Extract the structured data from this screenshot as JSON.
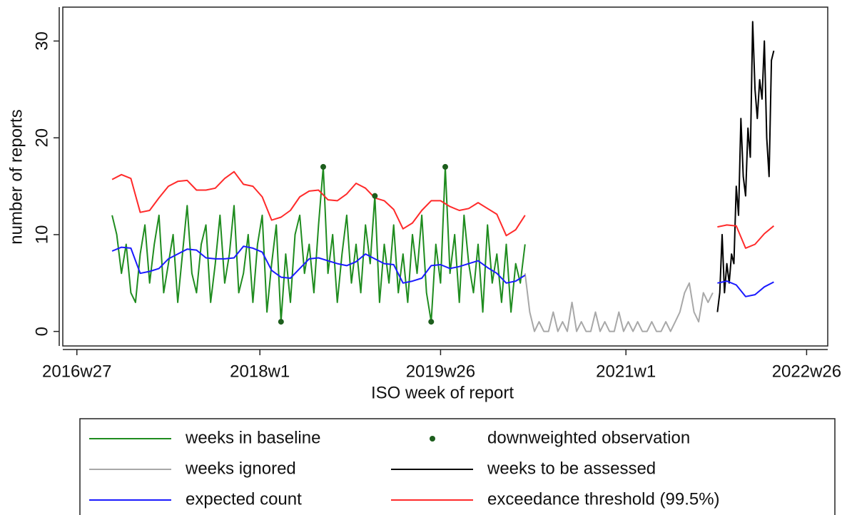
{
  "chart_data": {
    "type": "line",
    "xlabel": "ISO week of report",
    "ylabel": "number of reports",
    "xlim": [
      2932,
      3258
    ],
    "ylim": [
      -1.5,
      33.5
    ],
    "xticks": [
      {
        "value": 2938,
        "label": "2016w27"
      },
      {
        "value": 3016,
        "label": "2018w1"
      },
      {
        "value": 3093,
        "label": "2019w26"
      },
      {
        "value": 3172,
        "label": "2021w1"
      },
      {
        "value": 3249,
        "label": "2022w26"
      }
    ],
    "yticks": [
      0,
      10,
      20,
      30
    ],
    "legend": "bottom",
    "series": [
      {
        "name": "weeks in baseline",
        "color": "#1f8c1f",
        "style": "line",
        "x": [
          2953,
          2955,
          2957,
          2959,
          2961,
          2963,
          2965,
          2967,
          2969,
          2971,
          2973,
          2975,
          2977,
          2979,
          2981,
          2983,
          2985,
          2987,
          2989,
          2991,
          2993,
          2995,
          2997,
          2999,
          3001,
          3003,
          3005,
          3007,
          3009,
          3011,
          3013,
          3015,
          3017,
          3019,
          3021,
          3023,
          3025,
          3027,
          3029,
          3031,
          3033,
          3035,
          3037,
          3039,
          3041,
          3043,
          3045,
          3047,
          3049,
          3051,
          3053,
          3055,
          3057,
          3059,
          3061,
          3063,
          3065,
          3067,
          3069,
          3071,
          3073,
          3075,
          3077,
          3079,
          3081,
          3083,
          3085,
          3087,
          3089,
          3091,
          3093,
          3095,
          3097,
          3099,
          3101,
          3103,
          3105,
          3107,
          3109,
          3111,
          3113,
          3115,
          3117,
          3119,
          3121,
          3123,
          3125,
          3127,
          3129
        ],
        "values": [
          12,
          10,
          6,
          9,
          4,
          3,
          8,
          11,
          5,
          9,
          12,
          4,
          7,
          10,
          3,
          8,
          13,
          6,
          4,
          9,
          11,
          3,
          7,
          12,
          5,
          8,
          13,
          4,
          6,
          10,
          3,
          9,
          12,
          2,
          7,
          11,
          1,
          8,
          3,
          10,
          12,
          6,
          9,
          4,
          11,
          17,
          6,
          10,
          3,
          8,
          12,
          5,
          9,
          4,
          11,
          7,
          14,
          3,
          9,
          5,
          11,
          4,
          8,
          3,
          10,
          6,
          12,
          4,
          1,
          9,
          5,
          17,
          6,
          10,
          3,
          12,
          7,
          4,
          9,
          2,
          11,
          5,
          8,
          3,
          9,
          2,
          7,
          5,
          9
        ]
      },
      {
        "name": "downweighted observation",
        "color": "#1d5e1d",
        "style": "marker",
        "x": [
          3025,
          3043,
          3065,
          3089,
          3095
        ],
        "values": [
          1,
          17,
          14,
          1,
          17
        ]
      },
      {
        "name": "weeks ignored",
        "color": "#a8a8a8",
        "style": "line",
        "x": [
          3129,
          3131,
          3133,
          3135,
          3137,
          3139,
          3141,
          3143,
          3145,
          3147,
          3149,
          3151,
          3153,
          3155,
          3157,
          3159,
          3161,
          3163,
          3165,
          3167,
          3169,
          3171,
          3173,
          3175,
          3177,
          3179,
          3181,
          3183,
          3185,
          3187,
          3189,
          3191,
          3193,
          3195,
          3197,
          3199,
          3201,
          3203,
          3205,
          3207,
          3209
        ],
        "values": [
          6,
          2,
          0,
          1,
          0,
          0,
          2,
          0,
          1,
          0,
          3,
          0,
          1,
          0,
          0,
          2,
          0,
          1,
          0,
          0,
          2,
          0,
          1,
          0,
          1,
          0,
          0,
          1,
          0,
          0,
          1,
          0,
          1,
          2,
          4,
          5,
          2,
          1,
          4,
          3,
          4
        ]
      },
      {
        "name": "weeks to be assessed",
        "color": "#000000",
        "style": "line",
        "x": [
          3211,
          3212,
          3213,
          3214,
          3215,
          3216,
          3217,
          3218,
          3219,
          3220,
          3221,
          3222,
          3223,
          3224,
          3225,
          3226,
          3227,
          3228,
          3229,
          3230,
          3231,
          3232,
          3233,
          3234,
          3235
        ],
        "values": [
          2,
          4,
          10,
          4,
          7,
          5,
          8,
          7,
          15,
          12,
          22,
          16,
          14,
          21,
          18,
          32,
          25,
          22,
          26,
          24,
          30,
          20,
          16,
          28,
          29
        ]
      },
      {
        "name": "expected count",
        "color": "#1a1aff",
        "style": "line",
        "x": [
          2953,
          2957,
          2961,
          2965,
          2969,
          2973,
          2977,
          2981,
          2985,
          2989,
          2993,
          2997,
          3001,
          3005,
          3009,
          3013,
          3017,
          3021,
          3025,
          3029,
          3033,
          3037,
          3041,
          3045,
          3049,
          3053,
          3057,
          3061,
          3065,
          3069,
          3073,
          3077,
          3081,
          3085,
          3089,
          3093,
          3097,
          3101,
          3105,
          3109,
          3113,
          3117,
          3121,
          3125,
          3129,
          null,
          3211,
          3215,
          3219,
          3223,
          3227,
          3231,
          3235
        ],
        "values": [
          8.3,
          8.7,
          8.6,
          6.0,
          6.2,
          6.5,
          7.5,
          8.0,
          8.5,
          8.4,
          7.6,
          7.5,
          7.5,
          7.6,
          8.8,
          8.6,
          8.2,
          6.3,
          5.6,
          5.5,
          6.5,
          7.5,
          7.6,
          7.3,
          7.0,
          6.8,
          7.2,
          8.0,
          7.5,
          7.0,
          6.9,
          5.0,
          5.2,
          5.5,
          6.8,
          6.9,
          6.5,
          6.7,
          7.0,
          7.3,
          6.6,
          6.0,
          5.0,
          5.2,
          5.8,
          null,
          5.0,
          5.2,
          4.8,
          3.6,
          3.8,
          4.6,
          5.1
        ]
      },
      {
        "name": "exceedance threshold (99.5%)",
        "color": "#ff2a2a",
        "style": "line",
        "x": [
          2953,
          2957,
          2961,
          2965,
          2969,
          2973,
          2977,
          2981,
          2985,
          2989,
          2993,
          2997,
          3001,
          3005,
          3009,
          3013,
          3017,
          3021,
          3025,
          3029,
          3033,
          3037,
          3041,
          3045,
          3049,
          3053,
          3057,
          3061,
          3065,
          3069,
          3073,
          3077,
          3081,
          3085,
          3089,
          3093,
          3097,
          3101,
          3105,
          3109,
          3113,
          3117,
          3121,
          3125,
          3129,
          null,
          3211,
          3215,
          3219,
          3223,
          3227,
          3231,
          3235
        ],
        "values": [
          15.7,
          16.2,
          15.8,
          12.3,
          12.5,
          13.8,
          15.0,
          15.5,
          15.6,
          14.6,
          14.6,
          14.8,
          15.8,
          16.5,
          15.2,
          15.0,
          13.9,
          11.5,
          11.8,
          12.5,
          13.9,
          14.5,
          14.6,
          13.6,
          13.5,
          14.2,
          15.3,
          14.8,
          13.8,
          13.5,
          12.6,
          10.6,
          11.2,
          12.5,
          13.5,
          13.5,
          12.9,
          12.5,
          12.7,
          13.3,
          12.7,
          12.1,
          9.9,
          10.5,
          12.0,
          null,
          10.8,
          11.0,
          10.9,
          8.6,
          9.0,
          10.1,
          10.9
        ]
      }
    ]
  }
}
